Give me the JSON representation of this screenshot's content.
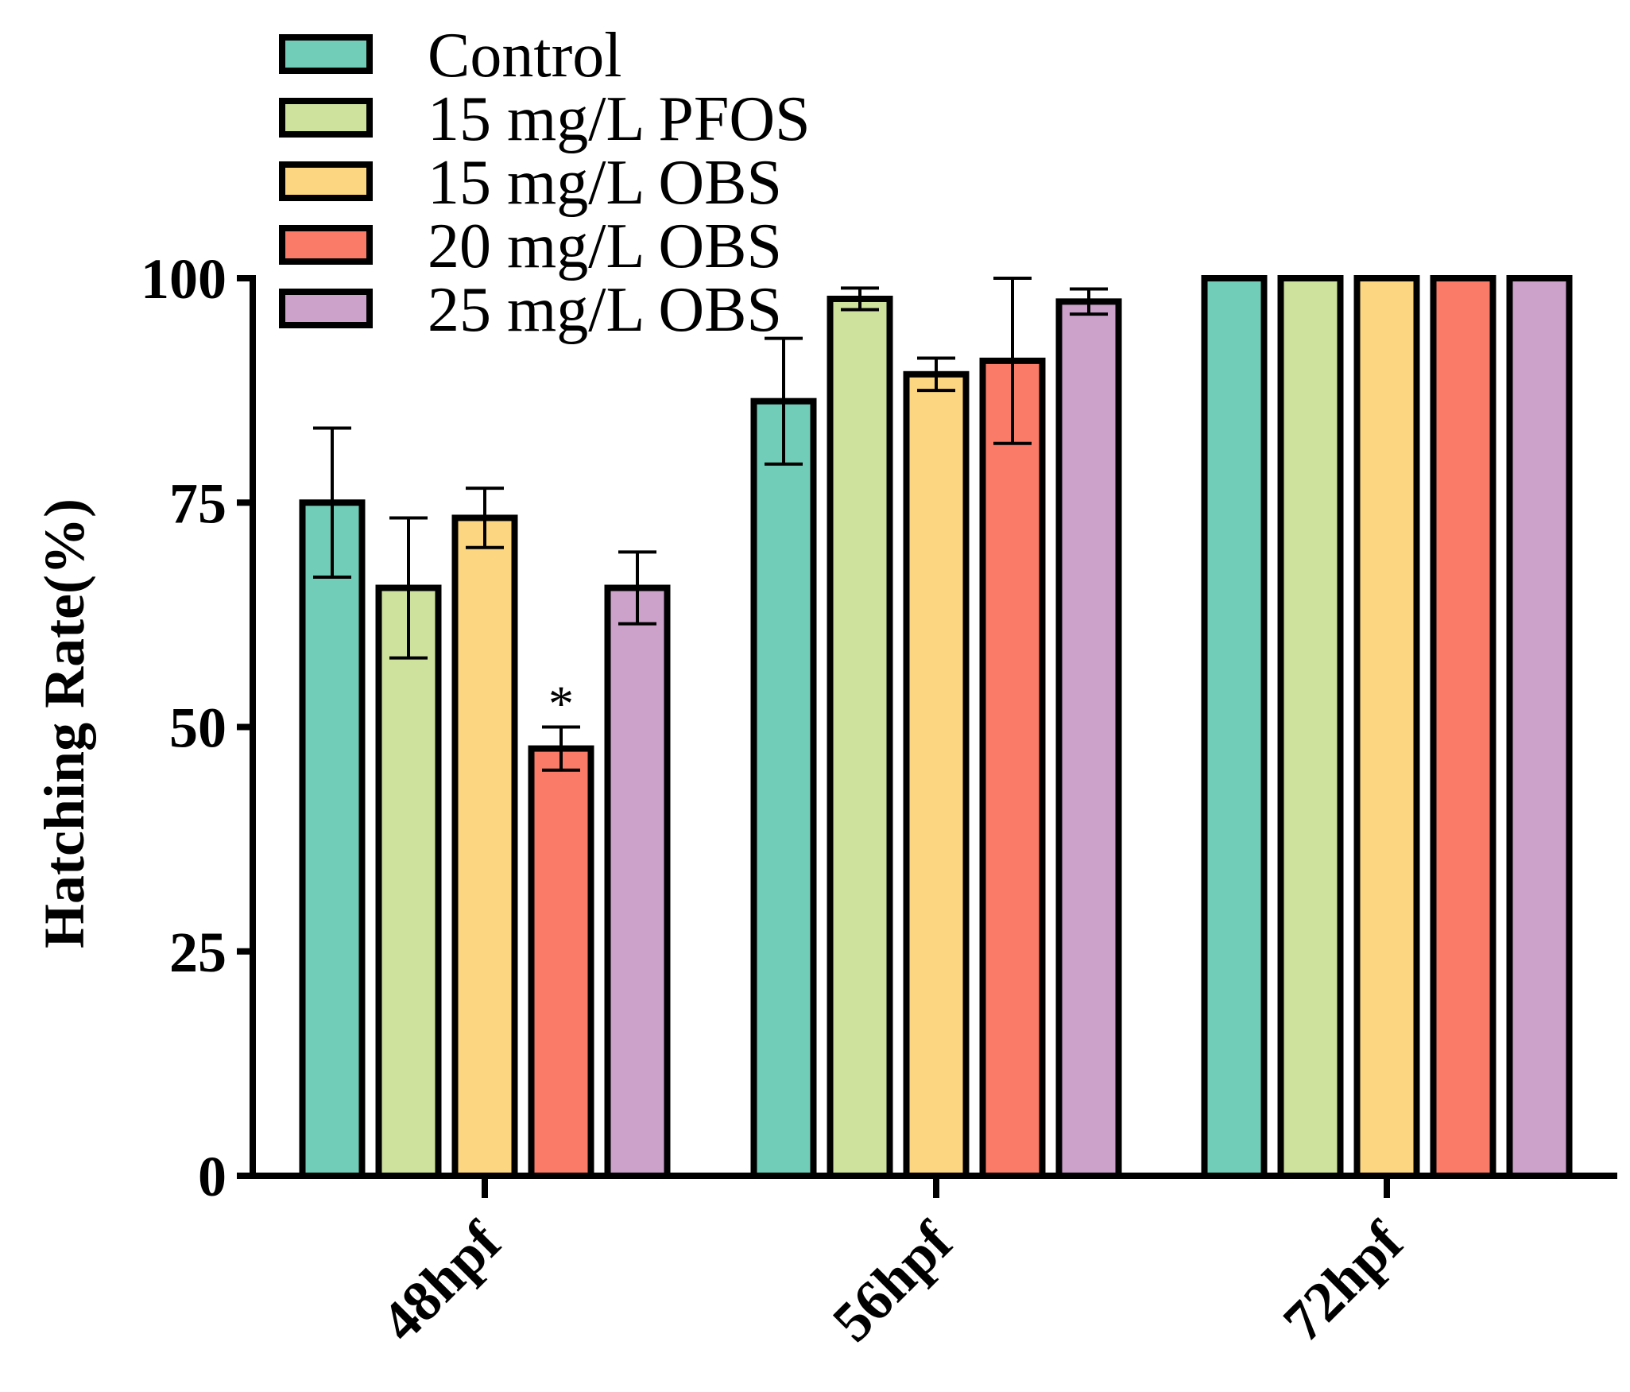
{
  "chart_data": {
    "type": "bar",
    "title": "",
    "xlabel": "",
    "ylabel": "Hatching Rate(%)",
    "ylim": [
      0,
      100
    ],
    "yticks": [
      "0",
      "25",
      "50",
      "75",
      "100"
    ],
    "categories": [
      "48hpf",
      "56hpf",
      "72hpf"
    ],
    "legend_position": "top-left",
    "series": [
      {
        "name": "Control",
        "color": "#72CDB8",
        "values": [
          75.0,
          86.3,
          100
        ],
        "errors": [
          8.3,
          7.0,
          0
        ]
      },
      {
        "name": "15 mg/L PFOS",
        "color": "#CEE29E",
        "values": [
          65.5,
          97.7,
          100
        ],
        "errors": [
          7.8,
          1.2,
          0
        ]
      },
      {
        "name": "15 mg/L OBS",
        "color": "#FCD680",
        "values": [
          73.3,
          89.3,
          100
        ],
        "errors": [
          3.3,
          1.8,
          0
        ]
      },
      {
        "name": "20 mg/L OBS",
        "color": "#FA7B67",
        "values": [
          47.6,
          90.8,
          100
        ],
        "errors": [
          2.4,
          9.2,
          0
        ]
      },
      {
        "name": "25 mg/L OBS",
        "color": "#CCA2CB",
        "values": [
          65.5,
          97.4,
          100
        ],
        "errors": [
          4.0,
          1.4,
          0
        ]
      }
    ],
    "annotations": [
      {
        "text": "*",
        "category": "48hpf",
        "series": "20 mg/L OBS"
      }
    ]
  }
}
